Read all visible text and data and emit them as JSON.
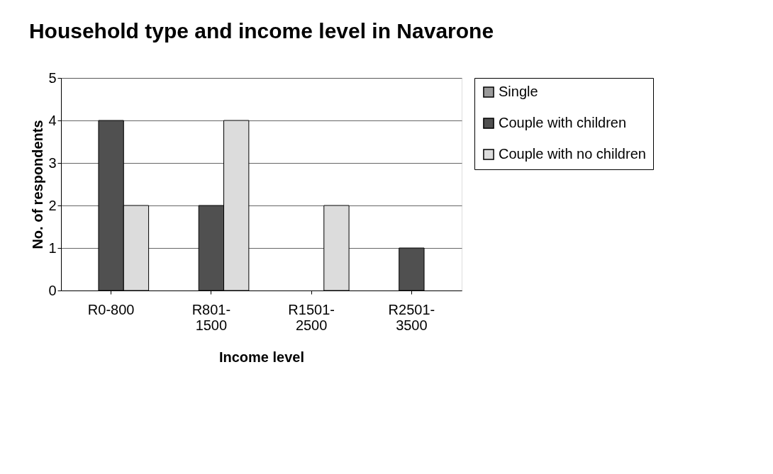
{
  "chart_data": {
    "type": "bar",
    "title": "Household type and income level in Navarone",
    "xlabel": "Income level",
    "ylabel": "No. of respondents",
    "categories": [
      "R0-800",
      "R801-1500",
      "R1501-2500",
      "R2501-3500"
    ],
    "series": [
      {
        "name": "Single",
        "color": "#9a9a9a",
        "values": [
          0,
          0,
          0,
          0
        ]
      },
      {
        "name": "Couple with  children",
        "color": "#505050",
        "values": [
          4,
          2,
          0,
          1
        ]
      },
      {
        "name": "Couple with no children",
        "color": "#dcdcdc",
        "values": [
          2,
          4,
          2,
          0
        ]
      }
    ],
    "ylim": [
      0,
      5
    ],
    "yticks": [
      0,
      1,
      2,
      3,
      4,
      5
    ],
    "grid": "y",
    "legend": "right"
  }
}
